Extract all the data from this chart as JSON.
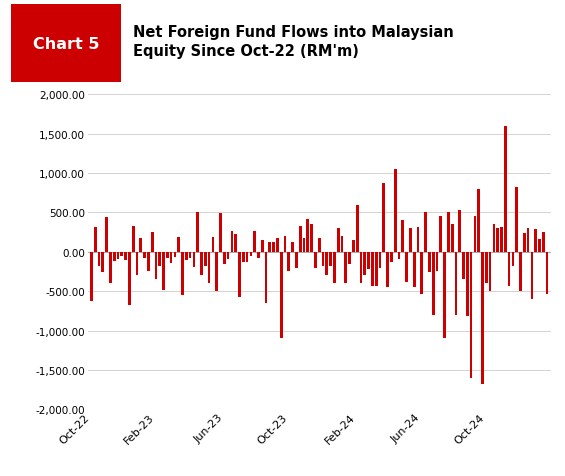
{
  "title_box_text": "Chart 5",
  "title_box_bg": "#cc0000",
  "title_text": "Net Foreign Fund Flows into Malaysian\nEquity Since Oct-22 (RM'm)",
  "header_bg": "#d4d4d4",
  "bar_color": "#cc0000",
  "ylim": [
    -2000,
    2000
  ],
  "yticks": [
    -2000,
    -1500,
    -1000,
    -500,
    0,
    500,
    1000,
    1500,
    2000
  ],
  "xtick_labels": [
    "Oct-22",
    "Feb-23",
    "Jun-23",
    "Oct-23",
    "Feb-24",
    "Jun-24",
    "Oct-24"
  ],
  "values": [
    -620,
    310,
    -180,
    -260,
    440,
    -400,
    -120,
    -90,
    -50,
    -110,
    -680,
    330,
    -300,
    170,
    -80,
    -240,
    250,
    -350,
    -180,
    -480,
    -80,
    -140,
    -60,
    190,
    -550,
    -110,
    -80,
    -190,
    500,
    -290,
    -180,
    -400,
    190,
    -500,
    490,
    -150,
    -90,
    270,
    220,
    -580,
    -130,
    -130,
    -50,
    270,
    -80,
    150,
    -650,
    130,
    130,
    170,
    -1100,
    200,
    -250,
    130,
    -200,
    330,
    170,
    420,
    350,
    -210,
    180,
    -180,
    -300,
    -180,
    -400,
    300,
    200,
    -400,
    -150,
    150,
    600,
    -400,
    -300,
    -220,
    -430,
    -430,
    -200,
    880,
    -450,
    -130,
    1050,
    -90,
    400,
    -380,
    300,
    -450,
    320,
    -540,
    510,
    -260,
    -800,
    -250,
    450,
    -1100,
    500,
    350,
    -800,
    530,
    -350,
    -820,
    -1600,
    450,
    800,
    -1680,
    -400,
    -500,
    350,
    300,
    320,
    1600,
    -430,
    -180,
    820,
    -500,
    240,
    300,
    -600,
    290,
    160,
    250,
    -540
  ]
}
